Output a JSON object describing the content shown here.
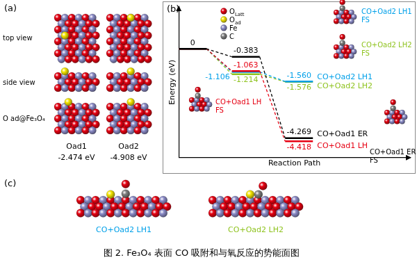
{
  "panel_a": {
    "label": "(a)",
    "row_labels": [
      "top view",
      "side view",
      "O ad@Fe₃O₄"
    ],
    "structures": [
      {
        "name": "Oad1",
        "energy": "-2.474 eV"
      },
      {
        "name": "Oad2",
        "energy": "-4.908 eV"
      }
    ]
  },
  "panel_b": {
    "label": "(b)",
    "atom_legend": [
      {
        "symbol": "O",
        "subscript": "Latt",
        "color": "#e60012"
      },
      {
        "symbol": "O",
        "subscript": "ad",
        "color": "#f5e600"
      },
      {
        "symbol": "Fe",
        "color": "#8c8cc8"
      },
      {
        "symbol": "C",
        "color": "#808080"
      }
    ]
  },
  "chart_data": {
    "type": "line",
    "xlabel": "Reaction Path",
    "ylabel": "Energy (eV)",
    "ylim": [
      -5.2,
      2
    ],
    "tick_labels": false,
    "grid": false,
    "data_labels": true,
    "series": [
      {
        "name": "CO+Oad1 ER",
        "color": "#000000",
        "values": [
          0,
          -0.383,
          -4.269
        ],
        "value_labels": [
          "0",
          "-0.383",
          "-4.269"
        ]
      },
      {
        "name": "CO+Oad1 LH",
        "color": "#e60012",
        "values": [
          0,
          -1.063,
          -4.418
        ],
        "value_labels": [
          null,
          "-1.063",
          "-4.418"
        ]
      },
      {
        "name": "CO+Oad2 LH1",
        "color": "#00a0e9",
        "values": [
          0,
          -1.106,
          -1.56
        ],
        "value_labels": [
          null,
          "-1.106",
          "-1.560"
        ]
      },
      {
        "name": "CO+Oad2 LH2",
        "color": "#8fc31f",
        "values": [
          0,
          -1.214,
          -1.576
        ],
        "value_labels": [
          null,
          "-1.214",
          "-1.576"
        ]
      }
    ],
    "annotations": [
      {
        "series": "CO+Oad1 ER",
        "lines": [
          "CO+Oad1 ER",
          "FS"
        ]
      },
      {
        "series": "CO+Oad1 LH",
        "lines": [
          "CO+Oad1 LH",
          "FS"
        ]
      },
      {
        "series": "CO+Oad2 LH1",
        "lines": [
          "CO+Oad2 LH1",
          "FS"
        ]
      },
      {
        "series": "CO+Oad2 LH2",
        "lines": [
          "CO+Oad2 LH2",
          "FS"
        ]
      }
    ]
  },
  "panel_c": {
    "label": "(c)",
    "structures": [
      {
        "name": "CO+Oad2 LH1",
        "color": "#00a0e9"
      },
      {
        "name": "CO+Oad2 LH2",
        "color": "#8fc31f"
      }
    ]
  },
  "caption": "图 2. Fe₃O₄ 表面 CO 吸附和与氧反应的势能面图"
}
